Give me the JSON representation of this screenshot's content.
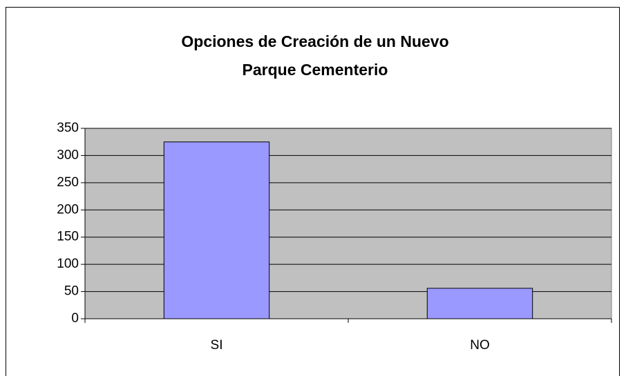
{
  "chart_data": {
    "type": "bar",
    "title": [
      "Opciones de Creación de un Nuevo",
      "Parque Cementerio"
    ],
    "categories": [
      "SI",
      "NO"
    ],
    "values": [
      325,
      56
    ],
    "color": "#9999ff",
    "plot_background": "#c0c0c0",
    "ylim": [
      0,
      350
    ],
    "yticks": [
      0,
      50,
      100,
      150,
      200,
      250,
      300,
      350
    ],
    "grid": true
  }
}
